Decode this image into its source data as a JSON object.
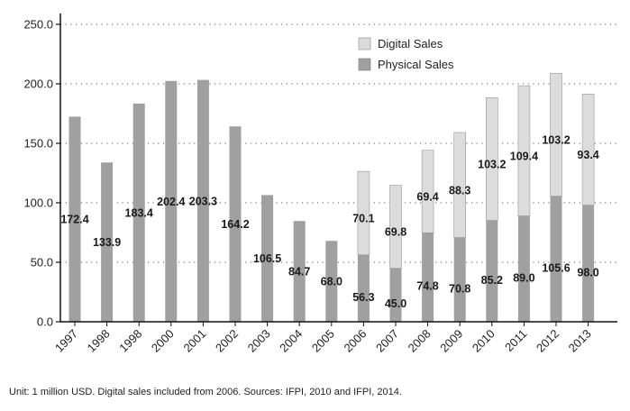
{
  "chart_data": {
    "type": "bar",
    "stacked": true,
    "categories": [
      "1997",
      "1998",
      "1998",
      "2000",
      "2001",
      "2002",
      "2003",
      "2004",
      "2005",
      "2006",
      "2007",
      "2008",
      "2009",
      "2010",
      "2011",
      "2012",
      "2013"
    ],
    "series": [
      {
        "name": "Physical Sales",
        "color": "#a0a0a0",
        "values": [
          172.4,
          133.9,
          183.4,
          202.4,
          203.3,
          164.2,
          106.5,
          84.7,
          68.0,
          56.3,
          45.0,
          74.8,
          70.8,
          85.2,
          89.0,
          105.6,
          98.0
        ]
      },
      {
        "name": "Digital Sales",
        "color": "#dcdcdc",
        "values": [
          null,
          null,
          null,
          null,
          null,
          null,
          null,
          null,
          null,
          70.1,
          69.8,
          69.4,
          88.3,
          103.2,
          109.4,
          103.2,
          93.4
        ]
      }
    ],
    "y_ticks": [
      "0.0",
      "50.0",
      "100.0",
      "150.0",
      "200.0",
      "250.0"
    ],
    "ylim": [
      0,
      250
    ],
    "grid": "horizontal dotted",
    "legend_position": "top-right",
    "xlabel": "",
    "ylabel": ""
  },
  "footnote": "Unit: 1 million USD. Digital sales included from 2006. Sources: IFPI, 2010 and IFPI, 2014."
}
